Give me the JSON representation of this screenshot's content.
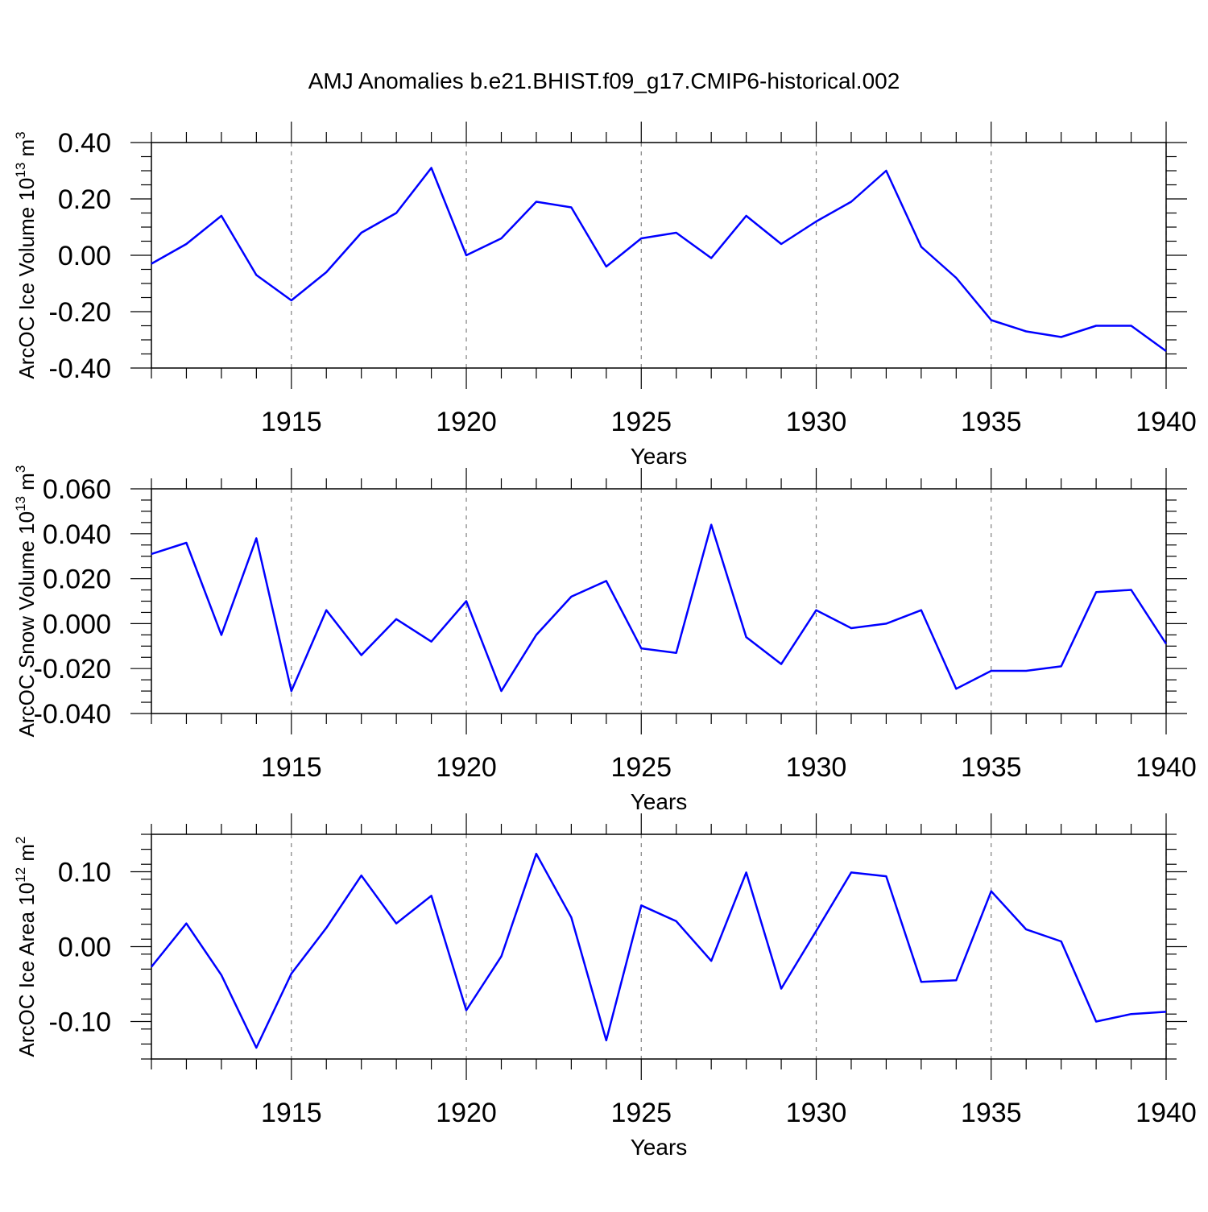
{
  "title": "AMJ Anomalies b.e21.BHIST.f09_g17.CMIP6-historical.002",
  "colors": {
    "line": "#0000ff",
    "axis": "#000000",
    "grid": "#808080"
  },
  "chart_data": [
    {
      "type": "line",
      "ylabel_main": "ArcOC Ice Volume 10",
      "ylabel_exp": "13",
      "ylabel_unit": " m",
      "ylabel_unit_exp": "3",
      "xlabel": "Years",
      "xlim": [
        1911,
        1940
      ],
      "ylim": [
        -0.4,
        0.4
      ],
      "y_ticks": [
        -0.4,
        -0.2,
        0.0,
        0.2,
        0.4
      ],
      "y_tick_labels": [
        "-0.40",
        "-0.20",
        "0.00",
        "0.20",
        "0.40"
      ],
      "y_minor_step": 0.05,
      "x_ticks": [
        1915,
        1920,
        1925,
        1930,
        1935,
        1940
      ],
      "x_tick_labels": [
        "1915",
        "1920",
        "1925",
        "1930",
        "1935",
        "1940"
      ],
      "grid": "dashed vertical at major x ticks",
      "x": [
        1911,
        1912,
        1913,
        1914,
        1915,
        1916,
        1917,
        1918,
        1919,
        1920,
        1921,
        1922,
        1923,
        1924,
        1925,
        1926,
        1927,
        1928,
        1929,
        1930,
        1931,
        1932,
        1933,
        1934,
        1935,
        1936,
        1937,
        1938,
        1939,
        1940
      ],
      "series": [
        {
          "values": [
            -0.03,
            0.04,
            0.14,
            -0.07,
            -0.16,
            -0.06,
            0.08,
            0.15,
            0.31,
            0.0,
            0.06,
            0.19,
            0.17,
            -0.04,
            0.06,
            0.08,
            -0.01,
            0.14,
            0.04,
            0.12,
            0.19,
            0.3,
            0.03,
            -0.08,
            -0.23,
            -0.27,
            -0.29,
            -0.25,
            -0.25,
            -0.34
          ]
        }
      ]
    },
    {
      "type": "line",
      "ylabel_main": "ArcOC Snow Volume 10",
      "ylabel_exp": "13",
      "ylabel_unit": " m",
      "ylabel_unit_exp": "3",
      "xlabel": "Years",
      "xlim": [
        1911,
        1940
      ],
      "ylim": [
        -0.04,
        0.06
      ],
      "y_ticks": [
        -0.04,
        -0.02,
        0.0,
        0.02,
        0.04,
        0.06
      ],
      "y_tick_labels": [
        "-0.040",
        "-0.020",
        "0.000",
        "0.020",
        "0.040",
        "0.060"
      ],
      "y_minor_step": 0.005,
      "x_ticks": [
        1915,
        1920,
        1925,
        1930,
        1935,
        1940
      ],
      "x_tick_labels": [
        "1915",
        "1920",
        "1925",
        "1930",
        "1935",
        "1940"
      ],
      "grid": "dashed vertical at major x ticks",
      "x": [
        1911,
        1912,
        1913,
        1914,
        1915,
        1916,
        1917,
        1918,
        1919,
        1920,
        1921,
        1922,
        1923,
        1924,
        1925,
        1926,
        1927,
        1928,
        1929,
        1930,
        1931,
        1932,
        1933,
        1934,
        1935,
        1936,
        1937,
        1938,
        1939,
        1940
      ],
      "series": [
        {
          "values": [
            0.031,
            0.036,
            -0.005,
            0.038,
            -0.03,
            0.006,
            -0.014,
            0.002,
            -0.008,
            0.01,
            -0.03,
            -0.005,
            0.012,
            0.019,
            -0.011,
            -0.013,
            0.044,
            -0.006,
            -0.018,
            0.006,
            -0.002,
            0.0,
            0.006,
            -0.029,
            -0.021,
            -0.021,
            -0.019,
            0.014,
            0.015,
            -0.009
          ]
        }
      ]
    },
    {
      "type": "line",
      "ylabel_main": "ArcOC Ice Area 10",
      "ylabel_exp": "12",
      "ylabel_unit": " m",
      "ylabel_unit_exp": "2",
      "xlabel": "Years",
      "xlim": [
        1911,
        1940
      ],
      "ylim": [
        -0.15,
        0.15
      ],
      "y_ticks": [
        -0.1,
        0.0,
        0.1
      ],
      "y_tick_labels": [
        "-0.10",
        "0.00",
        "0.10"
      ],
      "y_minor_step": 0.02,
      "x_ticks": [
        1915,
        1920,
        1925,
        1930,
        1935,
        1940
      ],
      "x_tick_labels": [
        "1915",
        "1920",
        "1925",
        "1930",
        "1935",
        "1940"
      ],
      "grid": "dashed vertical at major x ticks",
      "x": [
        1911,
        1912,
        1913,
        1914,
        1915,
        1916,
        1917,
        1918,
        1919,
        1920,
        1921,
        1922,
        1923,
        1924,
        1925,
        1926,
        1927,
        1928,
        1929,
        1930,
        1931,
        1932,
        1933,
        1934,
        1935,
        1936,
        1937,
        1938,
        1939,
        1940
      ],
      "series": [
        {
          "values": [
            -0.027,
            0.031,
            -0.038,
            -0.135,
            -0.036,
            0.025,
            0.095,
            0.031,
            0.068,
            -0.085,
            -0.013,
            0.124,
            0.039,
            -0.125,
            0.055,
            0.034,
            -0.019,
            0.099,
            -0.056,
            0.021,
            0.099,
            0.094,
            -0.047,
            -0.045,
            0.074,
            0.023,
            0.007,
            -0.1,
            -0.09,
            -0.087
          ]
        }
      ]
    }
  ]
}
